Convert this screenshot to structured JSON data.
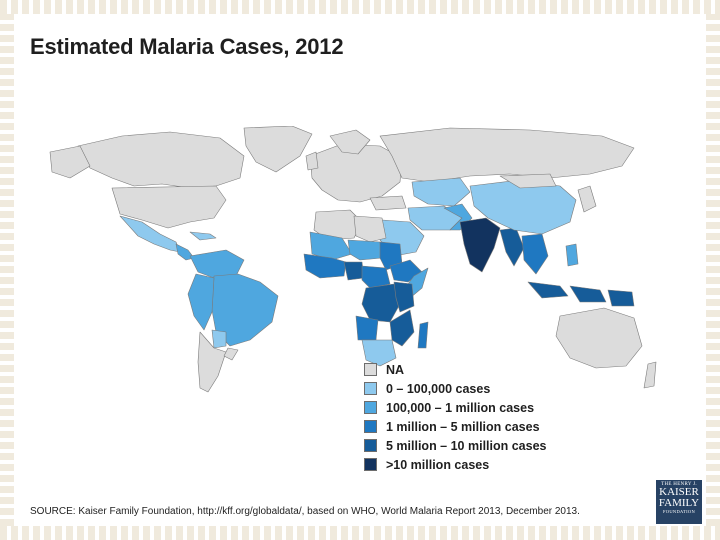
{
  "title": "Estimated Malaria Cases, 2012",
  "map": {
    "subject": "World choropleth of estimated malaria cases by country",
    "category_colors": {
      "NA": "#dcdcdc",
      "0-100k": "#8ec9ee",
      "100k-1m": "#4fa7df",
      "1m-5m": "#1f78c1",
      "5m-10m": "#165c99",
      "gt10m": "#12335f"
    },
    "ocean_color": "#ffffff",
    "border_color": "#7b7b7b"
  },
  "legend": {
    "items": [
      {
        "label": "NA",
        "color": "#dcdcdc"
      },
      {
        "label": "0 – 100,000 cases",
        "color": "#8ec9ee"
      },
      {
        "label": "100,000 – 1 million cases",
        "color": "#4fa7df"
      },
      {
        "label": "1 million – 5 million cases",
        "color": "#1f78c1"
      },
      {
        "label": "5 million – 10 million cases",
        "color": "#165c99"
      },
      {
        "label": ">10 million cases",
        "color": "#12335f"
      }
    ]
  },
  "source": "SOURCE: Kaiser Family Foundation, http://kff.org/globaldata/, based on WHO, World Malaria Report 2013, December 2013.",
  "logo": {
    "line1": "THE HENRY J.",
    "line2": "KAISER",
    "line3": "FAMILY",
    "line4": "FOUNDATION"
  }
}
